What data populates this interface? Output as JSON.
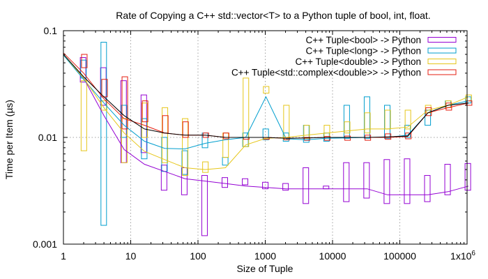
{
  "chart_data": {
    "type": "line",
    "title": "Rate of Copying a C++ std::vector<T> to a Python tuple of bool, int, float.",
    "xlabel": "Size of Tuple",
    "ylabel": "Time per Item (µs)",
    "x_scale": "log",
    "y_scale": "log",
    "xlim": [
      1,
      1000000
    ],
    "ylim": [
      0.001,
      0.1
    ],
    "x_tick_values": [
      1,
      10,
      100,
      1000,
      10000,
      100000,
      1000000
    ],
    "x_tick_labels": [
      "1",
      "10",
      "100",
      "1000",
      "10000",
      "100000",
      "1x10^6"
    ],
    "y_tick_values": [
      0.001,
      0.01,
      0.1
    ],
    "y_tick_labels": [
      "0.001",
      "0.01",
      "0.1"
    ],
    "grid": true,
    "legend_position": "top-right",
    "x": [
      1,
      2,
      4,
      8,
      16,
      32,
      64,
      128,
      256,
      512,
      1024,
      2048,
      4096,
      8192,
      16384,
      32768,
      65536,
      131072,
      262144,
      524288,
      1048576
    ],
    "series": [
      {
        "name": "C++ Tuple<bool> -> Python",
        "color": "#9400d3",
        "values": [
          0.06,
          0.036,
          0.016,
          0.0077,
          0.0056,
          0.0048,
          0.0041,
          0.0039,
          0.0037,
          0.0035,
          0.0034,
          0.0033,
          0.0033,
          0.0033,
          0.0033,
          0.0033,
          0.0029,
          0.0029,
          0.0029,
          0.0031,
          0.0035
        ],
        "boxes": [
          null,
          [
            0.033,
            0.056
          ],
          [
            0.02,
            0.045
          ],
          [
            0.0058,
            0.034
          ],
          [
            0.0072,
            0.025
          ],
          [
            0.0032,
            0.0055
          ],
          [
            0.0029,
            0.0052
          ],
          [
            0.0012,
            0.0044
          ],
          [
            0.0034,
            0.0042
          ],
          [
            0.0036,
            0.0041
          ],
          [
            0.0033,
            0.0038
          ],
          [
            0.0032,
            0.0037
          ],
          [
            0.0024,
            0.0052
          ],
          [
            0.0033,
            0.0035
          ],
          [
            0.0025,
            0.0058
          ],
          [
            0.0027,
            0.0058
          ],
          [
            0.0024,
            0.0062
          ],
          [
            0.0024,
            0.0063
          ],
          [
            0.0025,
            0.0044
          ],
          [
            0.0029,
            0.0056
          ],
          [
            0.0032,
            0.0057
          ]
        ]
      },
      {
        "name": "C++ Tuple<long> -> Python",
        "color": "#009ece",
        "values": [
          0.059,
          0.035,
          0.021,
          0.013,
          0.0092,
          0.0079,
          0.0078,
          0.0088,
          0.0095,
          0.01,
          0.024,
          0.0097,
          0.0095,
          0.0098,
          0.0099,
          0.01,
          0.01,
          0.0105,
          0.017,
          0.02,
          0.022
        ],
        "boxes": [
          null,
          [
            0.036,
            0.053
          ],
          [
            0.0015,
            0.078
          ],
          [
            0.01,
            0.02
          ],
          [
            0.0063,
            0.015
          ],
          [
            0.0048,
            0.01
          ],
          [
            0.0045,
            0.0075
          ],
          [
            0.008,
            0.011
          ],
          [
            0.0055,
            0.0065
          ],
          [
            0.0082,
            0.011
          ],
          [
            0.0095,
            0.012
          ],
          [
            0.0092,
            0.011
          ],
          [
            0.009,
            0.013
          ],
          [
            0.0092,
            0.011
          ],
          [
            0.0098,
            0.02
          ],
          [
            0.0098,
            0.024
          ],
          [
            0.0098,
            0.02
          ],
          [
            0.01,
            0.013
          ],
          [
            0.013,
            0.018
          ],
          [
            0.019,
            0.022
          ],
          [
            0.021,
            0.024
          ]
        ]
      },
      {
        "name": "C++ Tuple<double> -> Python",
        "color": "#e6c619",
        "values": [
          0.06,
          0.036,
          0.019,
          0.011,
          0.0074,
          0.0062,
          0.0052,
          0.005,
          0.0052,
          0.0085,
          0.0098,
          0.01,
          0.0105,
          0.011,
          0.0115,
          0.012,
          0.012,
          0.0125,
          0.018,
          0.02,
          0.024
        ],
        "boxes": [
          null,
          [
            0.0075,
            0.034
          ],
          [
            0.018,
            0.022
          ],
          [
            0.0058,
            0.015
          ],
          [
            0.01,
            0.021
          ],
          [
            0.0058,
            0.019
          ],
          [
            0.0044,
            0.015
          ],
          [
            0.0047,
            0.0059
          ],
          [
            0.0065,
            0.011
          ],
          [
            0.0082,
            0.036
          ],
          [
            0.026,
            0.03
          ],
          [
            0.0095,
            0.02
          ],
          [
            0.0098,
            0.013
          ],
          [
            0.01,
            0.013
          ],
          [
            0.011,
            0.014
          ],
          [
            0.011,
            0.017
          ],
          [
            0.012,
            0.018
          ],
          [
            0.012,
            0.018
          ],
          [
            0.017,
            0.02
          ],
          [
            0.019,
            0.022
          ],
          [
            0.022,
            0.025
          ]
        ]
      },
      {
        "name": "C++ Tuple<std::complex<double>> -> Python",
        "color": "#e51e10",
        "values": [
          0.062,
          0.04,
          0.023,
          0.015,
          0.013,
          0.011,
          0.0105,
          0.0105,
          0.01,
          0.01,
          0.01,
          0.0098,
          0.0099,
          0.01,
          0.01,
          0.01,
          0.01,
          0.0102,
          0.017,
          0.019,
          0.021
        ],
        "boxes": [
          null,
          [
            0.045,
            0.06
          ],
          [
            0.024,
            0.035
          ],
          [
            0.012,
            0.037
          ],
          [
            0.014,
            0.022
          ],
          [
            0.011,
            0.016
          ],
          [
            0.01,
            0.014
          ],
          [
            0.01,
            0.011
          ],
          [
            0.0097,
            0.011
          ],
          [
            0.0096,
            0.01
          ],
          [
            0.0096,
            0.01
          ],
          [
            0.0095,
            0.01
          ],
          [
            0.0094,
            0.01
          ],
          [
            0.0094,
            0.0102
          ],
          [
            0.0094,
            0.0103
          ],
          [
            0.0094,
            0.0105
          ],
          [
            0.0096,
            0.0108
          ],
          [
            0.0097,
            0.011
          ],
          [
            0.016,
            0.019
          ],
          [
            0.018,
            0.021
          ],
          [
            0.02,
            0.022
          ]
        ]
      }
    ],
    "overall_mean": {
      "color": "#000000",
      "values": [
        0.06,
        0.037,
        0.024,
        0.016,
        0.012,
        0.011,
        0.0105,
        0.0105,
        0.01,
        0.01,
        0.01,
        0.0098,
        0.0099,
        0.01,
        0.01,
        0.01,
        0.0101,
        0.0103,
        0.017,
        0.02,
        0.021
      ]
    }
  }
}
